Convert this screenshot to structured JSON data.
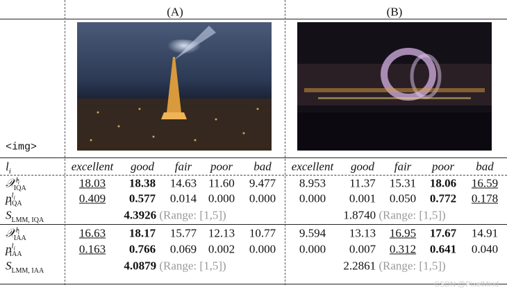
{
  "columns": [
    "(A)",
    "(B)"
  ],
  "image_label": "<img>",
  "levels": {
    "symbol": "l",
    "sub": "i",
    "values": [
      "excellent",
      "good",
      "fair",
      "poor",
      "bad"
    ]
  },
  "groups": [
    {
      "rows": [
        {
          "symbol": "𝒳",
          "sub": "IQA",
          "sup": "l",
          "sup_sub": "i",
          "cells": [
            "18.03",
            "18.38",
            "14.63",
            "11.60",
            "9.477",
            "8.953",
            "11.37",
            "15.31",
            "18.06",
            "16.59"
          ],
          "bold": [
            1,
            8
          ],
          "underline": [
            0,
            9
          ]
        },
        {
          "symbol": "p",
          "sub": "IQA",
          "sup": "l",
          "sup_sub": "i",
          "cells": [
            "0.409",
            "0.577",
            "0.014",
            "0.000",
            "0.000",
            "0.000",
            "0.001",
            "0.050",
            "0.772",
            "0.178"
          ],
          "bold": [
            1,
            8
          ],
          "underline": [
            0,
            9
          ]
        }
      ],
      "score": {
        "symbol": "S",
        "sub": "LMM, IQA",
        "values": [
          "4.3926",
          "1.8740"
        ],
        "range": "(Range: [1,5])",
        "bold": [
          0
        ]
      }
    },
    {
      "rows": [
        {
          "symbol": "𝒳",
          "sub": "IAA",
          "sup": "l",
          "sup_sub": "i",
          "cells": [
            "16.63",
            "18.17",
            "15.77",
            "12.13",
            "10.77",
            "9.594",
            "13.13",
            "16.95",
            "17.67",
            "14.91"
          ],
          "bold": [
            1,
            8
          ],
          "underline": [
            0,
            7
          ]
        },
        {
          "symbol": "p",
          "sub": "IAA",
          "sup": "l",
          "sup_sub": "i",
          "cells": [
            "0.163",
            "0.766",
            "0.069",
            "0.002",
            "0.000",
            "0.000",
            "0.007",
            "0.312",
            "0.641",
            "0.040"
          ],
          "bold": [
            1,
            8
          ],
          "underline": [
            0,
            7
          ]
        }
      ],
      "score": {
        "symbol": "S",
        "sub": "LMM, IAA",
        "values": [
          "4.0879",
          "2.2861"
        ],
        "range": "(Range: [1,5])",
        "bold": [
          0
        ]
      }
    }
  ],
  "watermark": "CSDN @PixelMind"
}
